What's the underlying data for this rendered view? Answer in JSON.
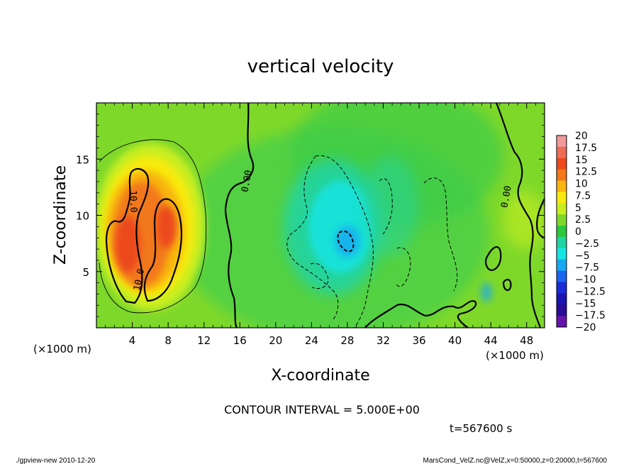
{
  "chart_data": {
    "type": "heatmap",
    "title": "vertical velocity",
    "xlabel": "X-coordinate",
    "ylabel": "Z-coordinate",
    "xlim": [
      0,
      50
    ],
    "ylim": [
      0,
      20
    ],
    "x_ticks": [
      4,
      8,
      12,
      16,
      20,
      24,
      28,
      32,
      36,
      40,
      44,
      48
    ],
    "y_ticks": [
      5,
      10,
      15
    ],
    "x_unit_label": "(×1000 m)",
    "y_unit_label": "(×1000 m)",
    "contour_labels": [
      {
        "text": "10.0",
        "x": 4.2,
        "y": 11.8
      },
      {
        "text": "10.0",
        "x": 5.0,
        "y": 4.0
      },
      {
        "text": "0.00",
        "x": 17.0,
        "y": 13.0
      },
      {
        "text": "0.00",
        "x": 46.0,
        "y": 11.3
      }
    ],
    "features": [
      {
        "kind": "updraft",
        "x": [
          1,
          10.5
        ],
        "z": [
          2.5,
          14.5
        ],
        "peak": 17
      },
      {
        "kind": "downdraft",
        "x": [
          23,
          34
        ],
        "z": [
          2,
          16
        ],
        "peak": -11
      }
    ],
    "colorbar": {
      "labels": [
        "20",
        "17.5",
        "15",
        "12.5",
        "10",
        "7.5",
        "5",
        "2.5",
        "0",
        "−2.5",
        "−5",
        "−7.5",
        "−10",
        "−12.5",
        "−15",
        "−17.5",
        "−20"
      ],
      "colors": [
        "#f29a9a",
        "#ee6e55",
        "#ec4a1c",
        "#f2781a",
        "#f8b510",
        "#f8ea10",
        "#c8ee20",
        "#7ed82a",
        "#2cc840",
        "#22d4a2",
        "#16e4e4",
        "#18a8f2",
        "#1a64f0",
        "#1a2cd6",
        "#1a14b0",
        "#2a0c96",
        "#6414aa"
      ]
    },
    "contour_interval": "CONTOUR INTERVAL = 5.000E+00",
    "time_label": "t=567600 s"
  },
  "footer": {
    "left": "./gpview-new  2010-12-20",
    "right": "MarsCond_VelZ.nc@VelZ,x=0:50000,z=0:20000,t=567600"
  }
}
